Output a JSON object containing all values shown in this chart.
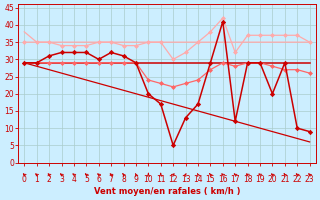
{
  "background_color": "#cceeff",
  "grid_color": "#aacccc",
  "xlabel": "Vent moyen/en rafales ( km/h )",
  "xlabel_color": "#cc0000",
  "xlabel_fontsize": 6.0,
  "tick_color": "#cc0000",
  "tick_fontsize": 5.5,
  "xlim": [
    -0.5,
    23.5
  ],
  "ylim": [
    0,
    46
  ],
  "yticks": [
    0,
    5,
    10,
    15,
    20,
    25,
    30,
    35,
    40,
    45
  ],
  "xticks": [
    0,
    1,
    2,
    3,
    4,
    5,
    6,
    7,
    8,
    9,
    10,
    11,
    12,
    13,
    14,
    15,
    16,
    17,
    18,
    19,
    20,
    21,
    22,
    23
  ],
  "lines": [
    {
      "x": [
        0,
        1,
        2,
        3,
        4,
        5,
        6,
        7,
        8,
        9,
        10,
        11,
        12,
        13,
        14,
        15,
        16,
        17,
        18,
        19,
        20,
        21,
        22,
        23
      ],
      "y": [
        38,
        35,
        35,
        35,
        35,
        35,
        35,
        35,
        35,
        35,
        35,
        35,
        35,
        35,
        35,
        35,
        35,
        35,
        35,
        35,
        35,
        35,
        35,
        35
      ],
      "color": "#ffaaaa",
      "lw": 0.9,
      "marker": null,
      "zorder": 2
    },
    {
      "x": [
        0,
        1,
        2,
        3,
        4,
        5,
        6,
        7,
        8,
        9,
        10,
        11,
        12,
        13,
        14,
        15,
        16,
        17,
        18,
        19,
        20,
        21,
        22,
        23
      ],
      "y": [
        35,
        35,
        35,
        34,
        34,
        34,
        35,
        35,
        34,
        34,
        35,
        35,
        30,
        32,
        35,
        38,
        42,
        32,
        37,
        37,
        37,
        37,
        37,
        35
      ],
      "color": "#ffaaaa",
      "lw": 0.9,
      "marker": "D",
      "markersize": 2.0,
      "zorder": 3
    },
    {
      "x": [
        0,
        1,
        2,
        3,
        4,
        5,
        6,
        7,
        8,
        9,
        10,
        11,
        12,
        13,
        14,
        15,
        16,
        17,
        18,
        19,
        20,
        21,
        22,
        23
      ],
      "y": [
        29,
        29,
        29,
        29,
        29,
        29,
        29,
        29,
        29,
        29,
        29,
        29,
        29,
        29,
        29,
        29,
        29,
        29,
        29,
        29,
        29,
        29,
        29,
        29
      ],
      "color": "#cc0000",
      "lw": 1.1,
      "marker": null,
      "zorder": 2
    },
    {
      "x": [
        0,
        1,
        2,
        3,
        4,
        5,
        6,
        7,
        8,
        9,
        10,
        11,
        12,
        13,
        14,
        15,
        16,
        17,
        18,
        19,
        20,
        21,
        22,
        23
      ],
      "y": [
        29,
        28,
        27,
        26,
        25,
        24,
        23,
        22,
        21,
        20,
        19,
        18,
        17,
        16,
        15,
        14,
        13,
        12,
        11,
        10,
        9,
        8,
        7,
        6
      ],
      "color": "#cc0000",
      "lw": 0.9,
      "marker": null,
      "zorder": 2
    },
    {
      "x": [
        0,
        1,
        2,
        3,
        4,
        5,
        6,
        7,
        8,
        9,
        10,
        11,
        12,
        13,
        14,
        15,
        16,
        17,
        18,
        19,
        20,
        21,
        22,
        23
      ],
      "y": [
        29,
        29,
        29,
        29,
        29,
        29,
        29,
        29,
        29,
        29,
        24,
        23,
        22,
        23,
        24,
        27,
        29,
        28,
        29,
        29,
        28,
        27,
        27,
        26
      ],
      "color": "#ff6666",
      "lw": 0.9,
      "marker": "D",
      "markersize": 2.0,
      "zorder": 3
    },
    {
      "x": [
        0,
        1,
        2,
        3,
        4,
        5,
        6,
        7,
        8,
        9,
        10,
        11,
        12,
        13,
        14,
        15,
        16,
        17,
        18,
        19,
        20,
        21,
        22,
        23
      ],
      "y": [
        29,
        29,
        31,
        32,
        32,
        32,
        30,
        32,
        31,
        29,
        20,
        17,
        5,
        13,
        17,
        29,
        41,
        12,
        29,
        29,
        20,
        29,
        10,
        9
      ],
      "color": "#cc0000",
      "lw": 1.1,
      "marker": "D",
      "markersize": 2.2,
      "zorder": 4
    }
  ],
  "arrow_angles_deg": [
    225,
    225,
    225,
    225,
    225,
    225,
    225,
    225,
    210,
    200,
    180,
    180,
    135,
    160,
    200,
    210,
    225,
    225,
    230,
    230,
    225,
    210,
    225,
    220
  ]
}
